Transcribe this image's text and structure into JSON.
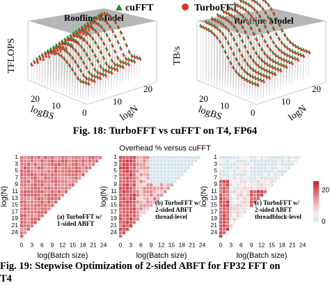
{
  "figure18": {
    "legend": {
      "series1": "cuFFT",
      "series2": "TurboFFT"
    },
    "left_panel": {
      "zlabel": "TFLOPS",
      "plane_label": "Roofline Model",
      "xlabel": "logBS",
      "ylabel": "logN",
      "x_ticks": [
        "20",
        "10",
        "0"
      ],
      "y_ticks": [
        "10",
        "20"
      ]
    },
    "right_panel": {
      "zlabel": "TB/s",
      "plane_label": "Roofline Model",
      "xlabel": "logBS",
      "ylabel": "logN",
      "x_ticks": [
        "20",
        "10",
        "0"
      ],
      "y_ticks": [
        "10",
        "20"
      ]
    },
    "caption": "Fig. 18: TurboFFT vs cuFFT on T4, FP64",
    "colors": {
      "cufft": "#2a8a2a",
      "turbofft": "#e0302a",
      "plane": "#a9a9a9"
    }
  },
  "figure19": {
    "title": "Overhead % versus cuFFT",
    "ylabel": "log(N)",
    "xlabel": "log(Batch size)",
    "y_ticks": [
      "1",
      "3",
      "5",
      "7",
      "9",
      "11",
      "13",
      "15",
      "17",
      "19",
      "21",
      "24"
    ],
    "x_ticks": [
      "0",
      "3",
      "6",
      "9",
      "12",
      "15",
      "18",
      "21",
      "24"
    ],
    "panels": [
      {
        "label_lines": [
          "(a) TurboFFT w/",
          "1-sided ABFT"
        ]
      },
      {
        "label_lines": [
          "(b) TurboFFT w/",
          "2-sided ABFT",
          "thread-level"
        ]
      },
      {
        "label_lines": [
          "(c) TurboFFT w/",
          "2-sided ABFT",
          "threadblock-level"
        ]
      }
    ],
    "colorbar": {
      "ticks": [
        "20",
        "0"
      ],
      "max_color": "#c8202a",
      "min_color": "#f5f5f5"
    },
    "caption_line1": "Fig. 19: Stepwise Optimization of 2-sided ABFT for FP32 FFT on",
    "caption_line2": "T4"
  }
}
